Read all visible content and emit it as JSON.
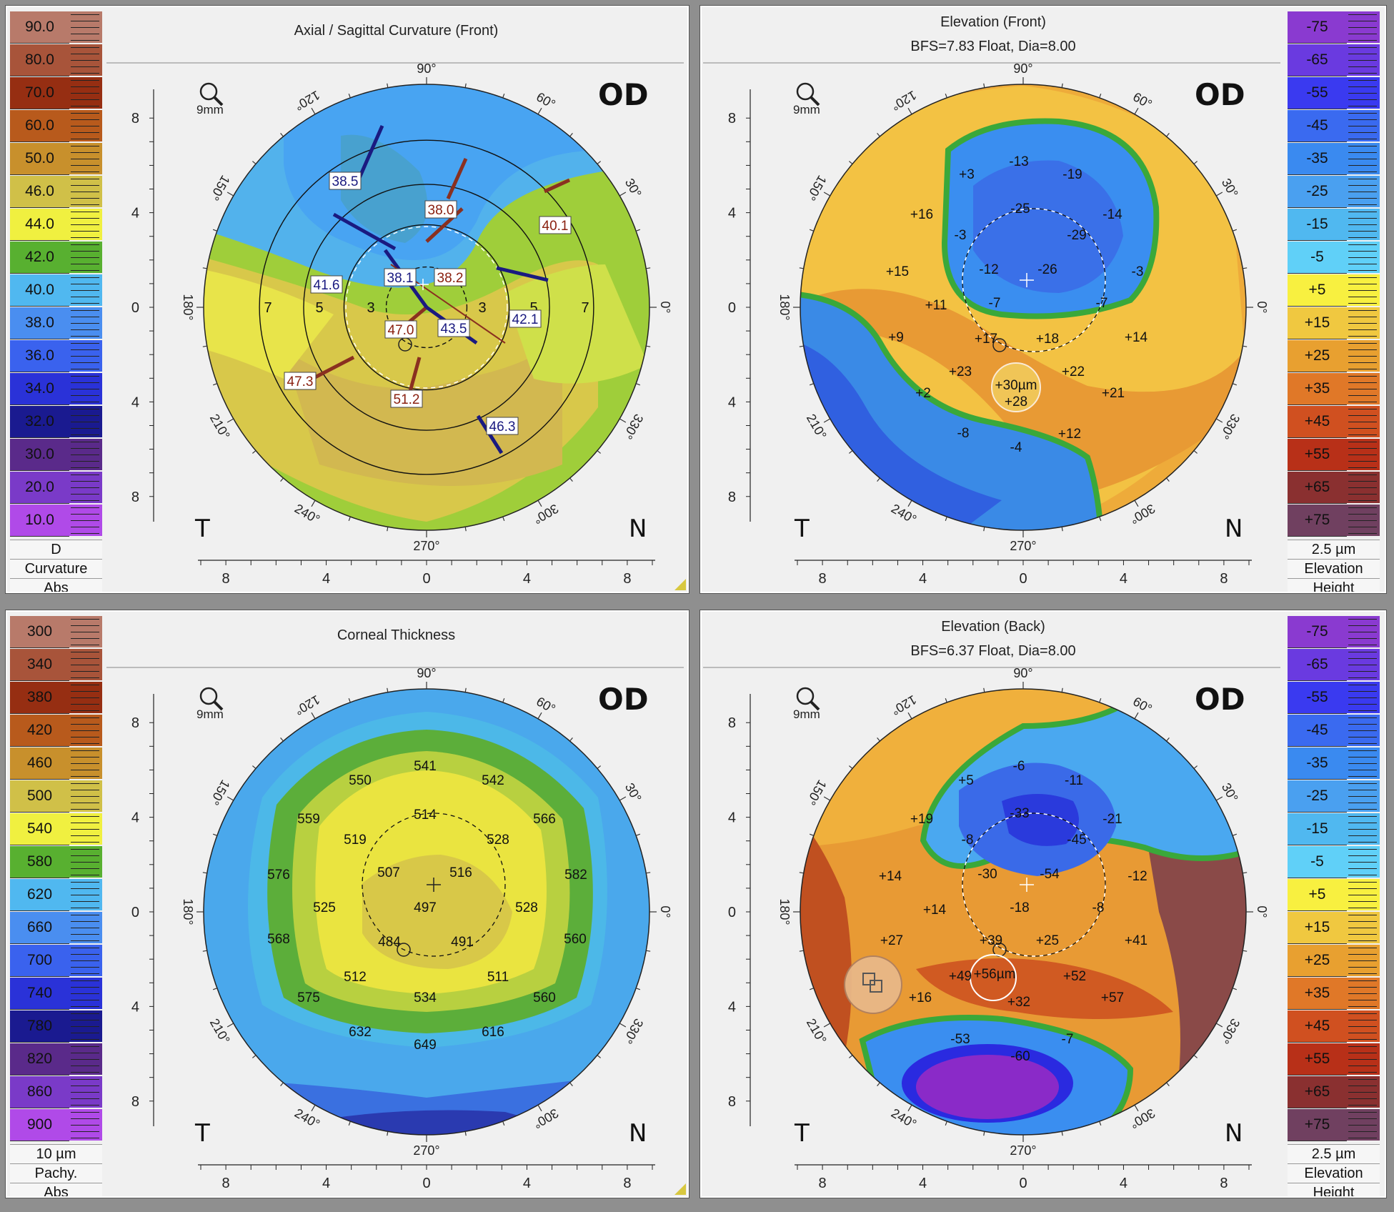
{
  "panels": {
    "axial": {
      "title": "Axial / Sagittal Curvature (Front)",
      "eye": "OD",
      "temporal": "T",
      "nasal": "N",
      "magnifier": "9mm",
      "scale": {
        "values": [
          "90.0",
          "80.0",
          "70.0",
          "60.0",
          "50.0",
          "46.0",
          "44.0",
          "42.0",
          "40.0",
          "38.0",
          "36.0",
          "34.0",
          "32.0",
          "30.0",
          "20.0",
          "10.0"
        ],
        "colors": [
          "#b87a6a",
          "#a8543a",
          "#962e12",
          "#b85a1c",
          "#c8902c",
          "#d0c048",
          "#f0f040",
          "#58b030",
          "#50b8f0",
          "#4a8ef0",
          "#3a62ee",
          "#2a32d8",
          "#1a1a90",
          "#5a2a8a",
          "#7a3ac8",
          "#b04ae8"
        ],
        "unit": "D",
        "label1": "Curvature",
        "label2": "Abs"
      },
      "readings": [
        {
          "text": "38.5",
          "color": "#1a1a80"
        },
        {
          "text": "38.0",
          "color": "#8a2010"
        },
        {
          "text": "40.1",
          "color": "#8a2010"
        },
        {
          "text": "41.6",
          "color": "#1a1a80"
        },
        {
          "text": "38.1",
          "color": "#1a1a80"
        },
        {
          "text": "38.2",
          "color": "#8a2010"
        },
        {
          "text": "42.1",
          "color": "#1a1a80"
        },
        {
          "text": "47.0",
          "color": "#8a2010"
        },
        {
          "text": "43.5",
          "color": "#1a1a80"
        },
        {
          "text": "47.3",
          "color": "#8a2010"
        },
        {
          "text": "51.2",
          "color": "#8a2010"
        },
        {
          "text": "46.3",
          "color": "#1a1a80"
        }
      ],
      "ring_labels": [
        "7",
        "5",
        "3",
        "3",
        "5",
        "7"
      ]
    },
    "elev_front": {
      "title": "Elevation (Front)",
      "subtitle": "BFS=7.83 Float, Dia=8.00",
      "eye": "OD",
      "temporal": "T",
      "nasal": "N",
      "magnifier": "9mm",
      "scale": {
        "values": [
          "-75",
          "-65",
          "-55",
          "-45",
          "-35",
          "-25",
          "-15",
          "-5",
          "+5",
          "+15",
          "+25",
          "+35",
          "+45",
          "+55",
          "+65",
          "+75"
        ],
        "colors": [
          "#8a3ad0",
          "#6a3ae0",
          "#3a3af0",
          "#3a6af0",
          "#3a8af0",
          "#4aa0f0",
          "#50b8f0",
          "#60d0f8",
          "#f8f040",
          "#f0c840",
          "#e8a030",
          "#e07828",
          "#d05020",
          "#b83018",
          "#8a3030",
          "#704060"
        ],
        "unit": "2.5 µm",
        "label1": "Elevation",
        "label2": "Height"
      },
      "values": [
        "-13",
        "-19",
        "+3",
        "+16",
        "-25",
        "-14",
        "-3",
        "-29",
        "+15",
        "-12",
        "-26",
        "-3",
        "+11",
        "-7",
        "-7",
        "+9",
        "+17",
        "+18",
        "+14",
        "+23",
        "+22",
        "+30µm",
        "+28",
        "+2",
        "+21",
        "-8",
        "+12",
        "-4"
      ]
    },
    "thickness": {
      "title": "Corneal Thickness",
      "eye": "OD",
      "temporal": "T",
      "nasal": "N",
      "magnifier": "9mm",
      "scale": {
        "values": [
          "300",
          "340",
          "380",
          "420",
          "460",
          "500",
          "540",
          "580",
          "620",
          "660",
          "700",
          "740",
          "780",
          "820",
          "860",
          "900"
        ],
        "colors": [
          "#b87a6a",
          "#a8543a",
          "#962e12",
          "#b85a1c",
          "#c8902c",
          "#d0c048",
          "#f0f040",
          "#58b030",
          "#50b8f0",
          "#4a8ef0",
          "#3a62ee",
          "#2a32d8",
          "#1a1a90",
          "#5a2a8a",
          "#7a3ac8",
          "#b04ae8"
        ],
        "unit": "10 µm",
        "label1": "Pachy.",
        "label2": "Abs"
      },
      "values": [
        "541",
        "550",
        "542",
        "559",
        "514",
        "566",
        "519",
        "528",
        "576",
        "507",
        "516",
        "582",
        "525",
        "497",
        "528",
        "568",
        "484",
        "491",
        "560",
        "512",
        "511",
        "575",
        "534",
        "560",
        "632",
        "649",
        "616"
      ]
    },
    "elev_back": {
      "title": "Elevation (Back)",
      "subtitle": "BFS=6.37 Float, Dia=8.00",
      "eye": "OD",
      "temporal": "T",
      "nasal": "N",
      "magnifier": "9mm",
      "scale": {
        "values": [
          "-75",
          "-65",
          "-55",
          "-45",
          "-35",
          "-25",
          "-15",
          "-5",
          "+5",
          "+15",
          "+25",
          "+35",
          "+45",
          "+55",
          "+65",
          "+75"
        ],
        "colors": [
          "#8a3ad0",
          "#6a3ae0",
          "#3a3af0",
          "#3a6af0",
          "#3a8af0",
          "#4aa0f0",
          "#50b8f0",
          "#60d0f8",
          "#f8f040",
          "#f0c840",
          "#e8a030",
          "#e07828",
          "#d05020",
          "#b83018",
          "#8a3030",
          "#704060"
        ],
        "unit": "2.5 µm",
        "label1": "Elevation",
        "label2": "Height"
      },
      "values": [
        "-6",
        "+5",
        "-11",
        "+19",
        "-33",
        "-21",
        "-8",
        "-45",
        "+14",
        "-30",
        "-54",
        "-12",
        "+14",
        "-18",
        "-8",
        "+27",
        "+39",
        "+25",
        "+41",
        "+49",
        "+56µm",
        "+52",
        "+16",
        "+32",
        "+57",
        "-53",
        "-60",
        "-7"
      ]
    }
  },
  "axis": {
    "degrees": [
      "90°",
      "60°",
      "30°",
      "0°",
      "330°",
      "300°",
      "270°",
      "240°",
      "210°",
      "180°",
      "150°",
      "120°"
    ],
    "ticks_x": [
      "8",
      "4",
      "0",
      "4",
      "8"
    ],
    "ticks_y": [
      "8",
      "4",
      "0",
      "4",
      "8"
    ]
  }
}
